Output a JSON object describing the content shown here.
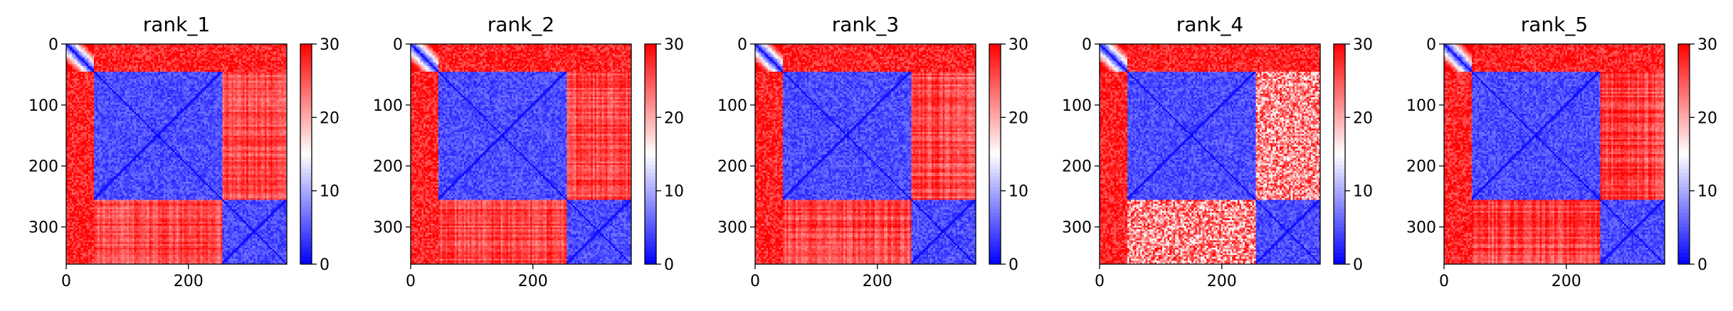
{
  "chart_data": [
    {
      "type": "heatmap",
      "title": "rank_1",
      "n": 361,
      "domains": [
        [
          0,
          45
        ],
        [
          45,
          255
        ],
        [
          255,
          361
        ]
      ],
      "variant": 1,
      "xticks": [
        0,
        200
      ],
      "yticks": [
        0,
        100,
        200,
        300
      ],
      "xlim": [
        0,
        361
      ],
      "ylim": [
        361,
        0
      ],
      "colorbar": {
        "min": 0,
        "max": 30,
        "ticks": [
          0,
          10,
          20,
          30
        ],
        "colormap": [
          "#0000ff",
          "#ffffff",
          "#ff0000"
        ]
      }
    },
    {
      "type": "heatmap",
      "title": "rank_2",
      "n": 361,
      "domains": [
        [
          0,
          45
        ],
        [
          45,
          255
        ],
        [
          255,
          361
        ]
      ],
      "variant": 2,
      "xticks": [
        0,
        200
      ],
      "yticks": [
        0,
        100,
        200,
        300
      ],
      "xlim": [
        0,
        361
      ],
      "ylim": [
        361,
        0
      ],
      "colorbar": {
        "min": 0,
        "max": 30,
        "ticks": [
          0,
          10,
          20,
          30
        ],
        "colormap": [
          "#0000ff",
          "#ffffff",
          "#ff0000"
        ]
      }
    },
    {
      "type": "heatmap",
      "title": "rank_3",
      "n": 361,
      "domains": [
        [
          0,
          45
        ],
        [
          45,
          255
        ],
        [
          255,
          361
        ]
      ],
      "variant": 3,
      "xticks": [
        0,
        200
      ],
      "yticks": [
        0,
        100,
        200,
        300
      ],
      "xlim": [
        0,
        361
      ],
      "ylim": [
        361,
        0
      ],
      "colorbar": {
        "min": 0,
        "max": 30,
        "ticks": [
          0,
          10,
          20,
          30
        ],
        "colormap": [
          "#0000ff",
          "#ffffff",
          "#ff0000"
        ]
      }
    },
    {
      "type": "heatmap",
      "title": "rank_4",
      "n": 361,
      "domains": [
        [
          0,
          45
        ],
        [
          45,
          255
        ],
        [
          255,
          361
        ]
      ],
      "variant": 4,
      "xticks": [
        0,
        200
      ],
      "yticks": [
        0,
        100,
        200,
        300
      ],
      "xlim": [
        0,
        361
      ],
      "ylim": [
        361,
        0
      ],
      "colorbar": {
        "min": 0,
        "max": 30,
        "ticks": [
          0,
          10,
          20,
          30
        ],
        "colormap": [
          "#0000ff",
          "#ffffff",
          "#ff0000"
        ]
      }
    },
    {
      "type": "heatmap",
      "title": "rank_5",
      "n": 361,
      "domains": [
        [
          0,
          45
        ],
        [
          45,
          255
        ],
        [
          255,
          361
        ]
      ],
      "variant": 5,
      "xticks": [
        0,
        200
      ],
      "yticks": [
        0,
        100,
        200,
        300
      ],
      "xlim": [
        0,
        361
      ],
      "ylim": [
        361,
        0
      ],
      "colorbar": {
        "min": 0,
        "max": 30,
        "ticks": [
          0,
          10,
          20,
          30
        ],
        "colormap": [
          "#0000ff",
          "#ffffff",
          "#ff0000"
        ]
      }
    }
  ]
}
